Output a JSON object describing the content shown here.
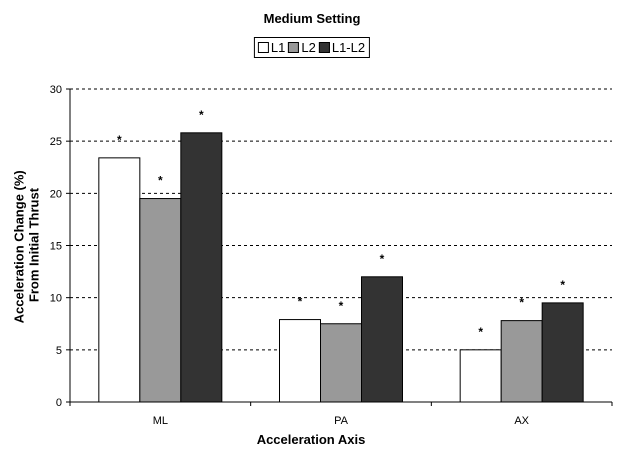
{
  "chart_data": {
    "type": "bar",
    "title": "Medium Setting",
    "xlabel": "Acceleration Axis",
    "ylabel": "Acceleration Change (%) From Initial Thrust",
    "ylim": [
      0,
      30
    ],
    "yticks": [
      0,
      5,
      10,
      15,
      20,
      25,
      30
    ],
    "grid": "horizontal dashed",
    "legend_position": "top-center",
    "categories": [
      "ML",
      "PA",
      "AX"
    ],
    "series": [
      {
        "name": "L1",
        "color": "#ffffff",
        "values": [
          23.4,
          7.9,
          5.0
        ]
      },
      {
        "name": "L2",
        "color": "#999999",
        "values": [
          19.5,
          7.5,
          7.8
        ]
      },
      {
        "name": "L1-L2",
        "color": "#333333",
        "values": [
          25.8,
          12.0,
          9.5
        ]
      }
    ],
    "annotation_marker": "*"
  }
}
